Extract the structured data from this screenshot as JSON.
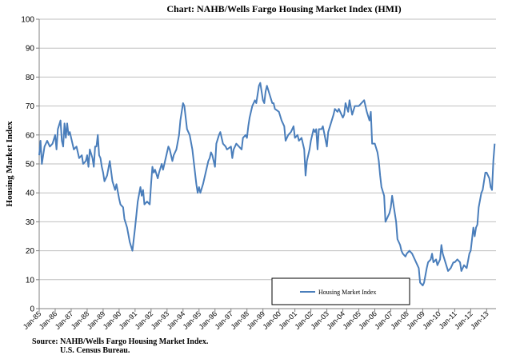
{
  "chart_data": {
    "type": "line",
    "title": "Chart:   NAHB/Wells Fargo Housing Market Index (HMI)",
    "ylabel": "Housing Market Index",
    "ylim": [
      0,
      100
    ],
    "yticks": [
      0,
      10,
      20,
      30,
      40,
      50,
      60,
      70,
      80,
      90,
      100
    ],
    "xticks": [
      "Jan-85",
      "Jan-86",
      "Jan-87",
      "Jan-88",
      "Jan-89",
      "Jan-90",
      "Jan-91",
      "Jan-92",
      "Jan-93",
      "Jan-94",
      "Jan-95",
      "Jan-96",
      "Jan-97",
      "Jan-98",
      "Jan-99",
      "Jan-00",
      "Jan-01",
      "Jan-02",
      "Jan-03",
      "Jan-04",
      "Jan-05",
      "Jan-06",
      "Jan-07",
      "Jan-08",
      "Jan-09",
      "Jan-10",
      "Jan-11",
      "Jan-12",
      "Jan-13"
    ],
    "x_start": "Jan-85",
    "grid": true,
    "legend_position": "bottom-center",
    "line_color": "#4a7ebb",
    "series": [
      {
        "name": "Housing Market Index",
        "points": [
          [
            "1985-01",
            53
          ],
          [
            "1985-02",
            58
          ],
          [
            "1985-03",
            50
          ],
          [
            "1985-05",
            56
          ],
          [
            "1985-07",
            58
          ],
          [
            "1985-09",
            56
          ],
          [
            "1985-11",
            57
          ],
          [
            "1986-01",
            60
          ],
          [
            "1986-02",
            55
          ],
          [
            "1986-03",
            62
          ],
          [
            "1986-05",
            65
          ],
          [
            "1986-06",
            58
          ],
          [
            "1986-07",
            56
          ],
          [
            "1986-08",
            64
          ],
          [
            "1986-09",
            59
          ],
          [
            "1986-10",
            64
          ],
          [
            "1986-11",
            60
          ],
          [
            "1986-12",
            61
          ],
          [
            "1987-01",
            59
          ],
          [
            "1987-03",
            55
          ],
          [
            "1987-05",
            56
          ],
          [
            "1987-07",
            52
          ],
          [
            "1987-09",
            53
          ],
          [
            "1987-10",
            50
          ],
          [
            "1987-12",
            51
          ],
          [
            "1988-01",
            53
          ],
          [
            "1988-02",
            49
          ],
          [
            "1988-03",
            55
          ],
          [
            "1988-05",
            52
          ],
          [
            "1988-06",
            49
          ],
          [
            "1988-07",
            56
          ],
          [
            "1988-08",
            56
          ],
          [
            "1988-09",
            60
          ],
          [
            "1988-10",
            53
          ],
          [
            "1988-11",
            52
          ],
          [
            "1988-12",
            49
          ],
          [
            "1989-01",
            47
          ],
          [
            "1989-02",
            44
          ],
          [
            "1989-04",
            46
          ],
          [
            "1989-06",
            51
          ],
          [
            "1989-08",
            44
          ],
          [
            "1989-10",
            41
          ],
          [
            "1989-11",
            43
          ],
          [
            "1990-01",
            38
          ],
          [
            "1990-02",
            36
          ],
          [
            "1990-04",
            35
          ],
          [
            "1990-05",
            31
          ],
          [
            "1990-07",
            28
          ],
          [
            "1990-09",
            23
          ],
          [
            "1990-11",
            20
          ],
          [
            "1991-01",
            28
          ],
          [
            "1991-03",
            37
          ],
          [
            "1991-05",
            42
          ],
          [
            "1991-06",
            39
          ],
          [
            "1991-07",
            41
          ],
          [
            "1991-08",
            36
          ],
          [
            "1991-10",
            37
          ],
          [
            "1991-12",
            36
          ],
          [
            "1992-01",
            43
          ],
          [
            "1992-02",
            49
          ],
          [
            "1992-03",
            47
          ],
          [
            "1992-04",
            48
          ],
          [
            "1992-06",
            45
          ],
          [
            "1992-07",
            47
          ],
          [
            "1992-09",
            50
          ],
          [
            "1992-10",
            48
          ],
          [
            "1993-01",
            54
          ],
          [
            "1993-02",
            56
          ],
          [
            "1993-03",
            55
          ],
          [
            "1993-05",
            51
          ],
          [
            "1993-06",
            53
          ],
          [
            "1993-08",
            55
          ],
          [
            "1993-10",
            60
          ],
          [
            "1993-11",
            65
          ],
          [
            "1994-01",
            71
          ],
          [
            "1994-02",
            70
          ],
          [
            "1994-04",
            62
          ],
          [
            "1994-06",
            60
          ],
          [
            "1994-08",
            55
          ],
          [
            "1994-10",
            47
          ],
          [
            "1994-11",
            43
          ],
          [
            "1994-12",
            40
          ],
          [
            "1995-01",
            42
          ],
          [
            "1995-02",
            40
          ],
          [
            "1995-04",
            43
          ],
          [
            "1995-06",
            47
          ],
          [
            "1995-08",
            51
          ],
          [
            "1995-09",
            52
          ],
          [
            "1995-10",
            54
          ],
          [
            "1995-11",
            53
          ],
          [
            "1996-01",
            49
          ],
          [
            "1996-02",
            57
          ],
          [
            "1996-04",
            60
          ],
          [
            "1996-05",
            61
          ],
          [
            "1996-07",
            57
          ],
          [
            "1996-09",
            56
          ],
          [
            "1996-10",
            55
          ],
          [
            "1997-01",
            56
          ],
          [
            "1997-02",
            52
          ],
          [
            "1997-03",
            55
          ],
          [
            "1997-05",
            57
          ],
          [
            "1997-07",
            56
          ],
          [
            "1997-09",
            55
          ],
          [
            "1997-10",
            59
          ],
          [
            "1997-12",
            60
          ],
          [
            "1998-01",
            59
          ],
          [
            "1998-02",
            63
          ],
          [
            "1998-03",
            66
          ],
          [
            "1998-05",
            70
          ],
          [
            "1998-07",
            72
          ],
          [
            "1998-08",
            71
          ],
          [
            "1998-10",
            77
          ],
          [
            "1998-11",
            78
          ],
          [
            "1999-01",
            72
          ],
          [
            "1999-02",
            71
          ],
          [
            "1999-03",
            75
          ],
          [
            "1999-04",
            77
          ],
          [
            "1999-06",
            74
          ],
          [
            "1999-08",
            71
          ],
          [
            "1999-09",
            71
          ],
          [
            "1999-10",
            69
          ],
          [
            "2000-01",
            68
          ],
          [
            "2000-03",
            65
          ],
          [
            "2000-05",
            63
          ],
          [
            "2000-06",
            58
          ],
          [
            "2000-08",
            60
          ],
          [
            "2000-10",
            61
          ],
          [
            "2000-12",
            63
          ],
          [
            "2001-01",
            59
          ],
          [
            "2001-03",
            60
          ],
          [
            "2001-04",
            58
          ],
          [
            "2001-06",
            59
          ],
          [
            "2001-08",
            55
          ],
          [
            "2001-09",
            46
          ],
          [
            "2001-10",
            51
          ],
          [
            "2001-12",
            55
          ],
          [
            "2002-01",
            58
          ],
          [
            "2002-03",
            62
          ],
          [
            "2002-04",
            61
          ],
          [
            "2002-05",
            62
          ],
          [
            "2002-06",
            55
          ],
          [
            "2002-07",
            62
          ],
          [
            "2002-09",
            62
          ],
          [
            "2002-10",
            63
          ],
          [
            "2003-01",
            56
          ],
          [
            "2003-02",
            61
          ],
          [
            "2003-04",
            64
          ],
          [
            "2003-06",
            67
          ],
          [
            "2003-07",
            69
          ],
          [
            "2003-09",
            68
          ],
          [
            "2003-10",
            69
          ],
          [
            "2004-01",
            66
          ],
          [
            "2004-02",
            67
          ],
          [
            "2004-03",
            71
          ],
          [
            "2004-05",
            68
          ],
          [
            "2004-06",
            72
          ],
          [
            "2004-08",
            67
          ],
          [
            "2004-10",
            70
          ],
          [
            "2005-01",
            70
          ],
          [
            "2005-03",
            71
          ],
          [
            "2005-05",
            72
          ],
          [
            "2005-07",
            68
          ],
          [
            "2005-09",
            65
          ],
          [
            "2005-10",
            68
          ],
          [
            "2005-11",
            57
          ],
          [
            "2006-01",
            57
          ],
          [
            "2006-03",
            54
          ],
          [
            "2006-04",
            51
          ],
          [
            "2006-05",
            46
          ],
          [
            "2006-06",
            42
          ],
          [
            "2006-08",
            39
          ],
          [
            "2006-09",
            30
          ],
          [
            "2006-10",
            31
          ],
          [
            "2006-12",
            33
          ],
          [
            "2007-01",
            35
          ],
          [
            "2007-02",
            39
          ],
          [
            "2007-04",
            33
          ],
          [
            "2007-05",
            30
          ],
          [
            "2007-06",
            24
          ],
          [
            "2007-08",
            22
          ],
          [
            "2007-09",
            20
          ],
          [
            "2007-10",
            19
          ],
          [
            "2007-12",
            18
          ],
          [
            "2008-01",
            19
          ],
          [
            "2008-03",
            20
          ],
          [
            "2008-05",
            19
          ],
          [
            "2008-06",
            18
          ],
          [
            "2008-08",
            16
          ],
          [
            "2008-10",
            14
          ],
          [
            "2008-11",
            9
          ],
          [
            "2009-01",
            8
          ],
          [
            "2009-02",
            9
          ],
          [
            "2009-04",
            14
          ],
          [
            "2009-05",
            16
          ],
          [
            "2009-07",
            17
          ],
          [
            "2009-08",
            19
          ],
          [
            "2009-09",
            16
          ],
          [
            "2009-11",
            17
          ],
          [
            "2009-12",
            15
          ],
          [
            "2010-01",
            16
          ],
          [
            "2010-02",
            17
          ],
          [
            "2010-03",
            22
          ],
          [
            "2010-04",
            19
          ],
          [
            "2010-06",
            16
          ],
          [
            "2010-08",
            13
          ],
          [
            "2010-10",
            14
          ],
          [
            "2010-12",
            16
          ],
          [
            "2011-01",
            16
          ],
          [
            "2011-03",
            17
          ],
          [
            "2011-05",
            16
          ],
          [
            "2011-06",
            13
          ],
          [
            "2011-08",
            15
          ],
          [
            "2011-10",
            14
          ],
          [
            "2011-12",
            19
          ],
          [
            "2012-01",
            20
          ],
          [
            "2012-03",
            28
          ],
          [
            "2012-04",
            25
          ],
          [
            "2012-05",
            28
          ],
          [
            "2012-06",
            29
          ],
          [
            "2012-07",
            35
          ],
          [
            "2012-09",
            40
          ],
          [
            "2012-10",
            41
          ],
          [
            "2012-12",
            47
          ],
          [
            "2013-01",
            47
          ],
          [
            "2013-03",
            45
          ],
          [
            "2013-04",
            42
          ],
          [
            "2013-05",
            41
          ],
          [
            "2013-06",
            51
          ],
          [
            "2013-07",
            57
          ]
        ]
      }
    ]
  },
  "source": {
    "line1": "Source: NAHB/Wells Fargo Housing Market Index.",
    "line2": "U.S. Census Bureau."
  }
}
